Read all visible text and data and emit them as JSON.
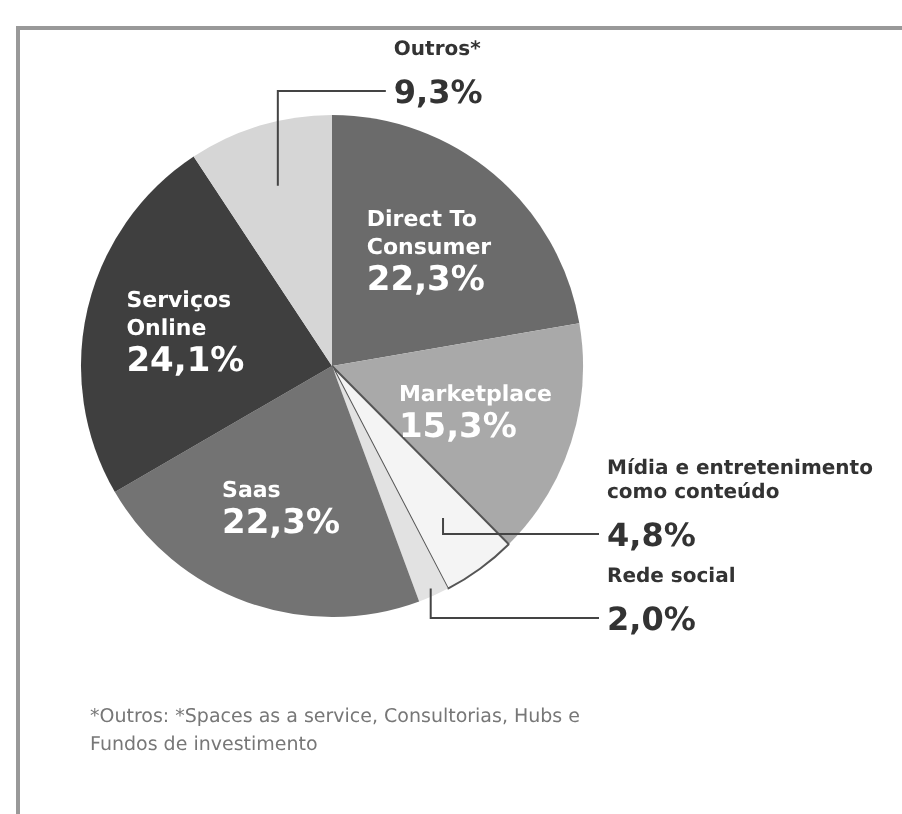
{
  "chart_data": {
    "type": "pie",
    "categories": [
      "Direct To Consumer",
      "Marketplace",
      "Mídia e entretenimento como conteúdo",
      "Rede social",
      "Saas",
      "Serviços Online",
      "Outros*"
    ],
    "values": [
      22.3,
      15.3,
      4.8,
      2.0,
      22.3,
      24.1,
      9.3
    ],
    "value_labels": [
      "22,3%",
      "15,3%",
      "4,8%",
      "2,0%",
      "22,3%",
      "24,1%",
      "9,3%"
    ],
    "colors": [
      "#6b6b6b",
      "#a9a9a9",
      "#f4f4f4",
      "#e2e2e2",
      "#737373",
      "#3f3f3f",
      "#d6d6d6"
    ],
    "annotations": [
      "*Outros: *Spaces as a service, Consultorias, Hubs e Fundos de investimento"
    ]
  }
}
